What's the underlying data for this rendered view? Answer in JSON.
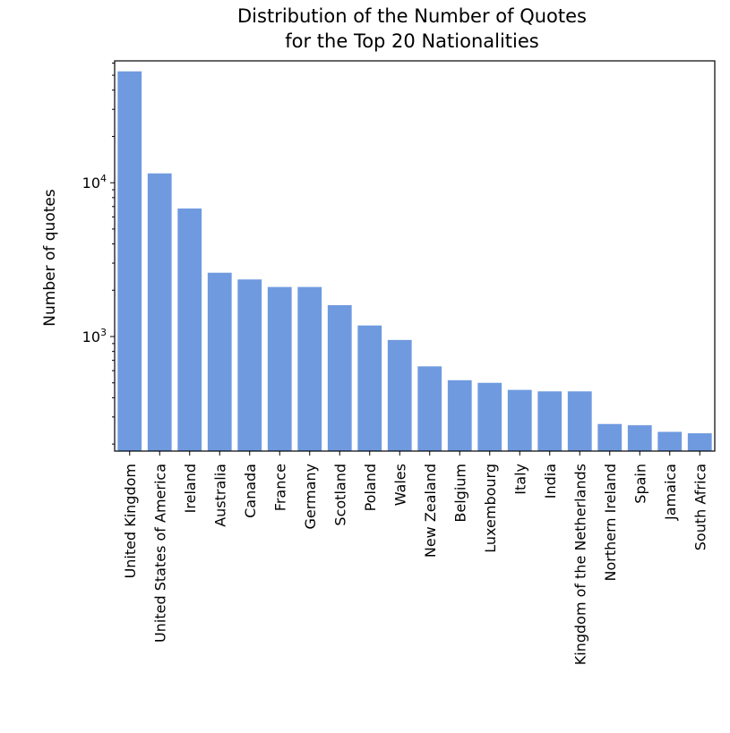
{
  "chart_data": {
    "type": "bar",
    "title_lines": [
      "Distribution of the Number of Quotes",
      "for the Top 20 Nationalities"
    ],
    "xlabel": "",
    "ylabel": "Number of quotes",
    "yscale": "log",
    "ylim": [
      180,
      62000
    ],
    "y_tick_labels": [
      {
        "base": "10",
        "exp": "3",
        "value": 1000
      },
      {
        "base": "10",
        "exp": "4",
        "value": 10000
      }
    ],
    "grid": false,
    "bar_color": "#6f9ae0",
    "categories": [
      "United Kingdom",
      "United States of America",
      "Ireland",
      "Australia",
      "Canada",
      "France",
      "Germany",
      "Scotland",
      "Poland",
      "Wales",
      "New Zealand",
      "Belgium",
      "Luxembourg",
      "Italy",
      "India",
      "Kingdom of the Netherlands",
      "Northern Ireland",
      "Spain",
      "Jamaica",
      "South Africa"
    ],
    "values": [
      53000,
      11500,
      6800,
      2600,
      2350,
      2100,
      2100,
      1600,
      1180,
      950,
      640,
      520,
      500,
      450,
      440,
      440,
      270,
      265,
      240,
      235
    ]
  }
}
